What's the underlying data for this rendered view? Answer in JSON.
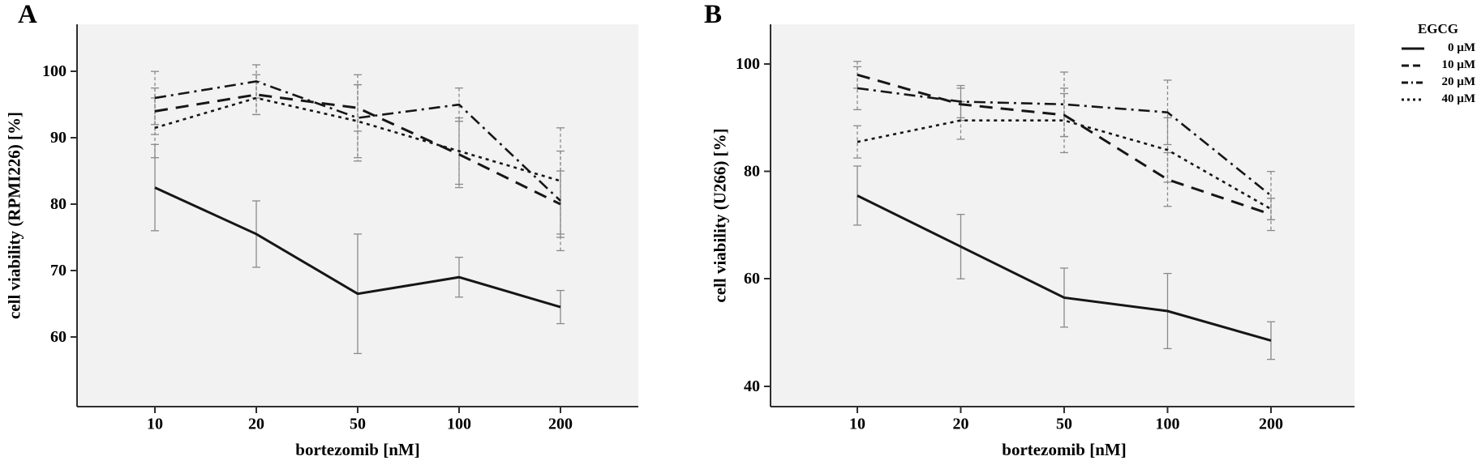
{
  "panels": [
    {
      "letter": "A"
    },
    {
      "letter": "B"
    }
  ],
  "legend": {
    "title": "EGCG",
    "items": [
      {
        "label": "0 µM",
        "style": "solid"
      },
      {
        "label": "10 µM",
        "style": "dashed"
      },
      {
        "label": "20 µM",
        "style": "dashdot"
      },
      {
        "label": "40 µM",
        "style": "dotted"
      }
    ]
  },
  "chart_data": [
    {
      "type": "line",
      "panel": "A",
      "xlabel": "bortezomib [nM]",
      "ylabel": "cell viability (RPMI226) [%]",
      "categories": [
        "10",
        "20",
        "50",
        "100",
        "200"
      ],
      "y_ticks": [
        60,
        70,
        80,
        90,
        100
      ],
      "ylim": [
        49.5,
        107.1
      ],
      "grid": false,
      "legend_position": "outside-right",
      "series": [
        {
          "name": "0 µM",
          "style": "solid",
          "values": [
            82.5,
            75.5,
            66.5,
            69.0,
            64.5
          ],
          "errors": [
            6.5,
            5.0,
            9.0,
            3.0,
            2.5
          ]
        },
        {
          "name": "10 µM",
          "style": "dashed",
          "values": [
            94.0,
            96.5,
            94.5,
            87.5,
            80.0
          ],
          "errors": [
            3.5,
            3.0,
            3.5,
            5.0,
            5.0
          ]
        },
        {
          "name": "20 µM",
          "style": "dashdot",
          "values": [
            96.0,
            98.5,
            93.0,
            95.0,
            80.5
          ],
          "errors": [
            4.0,
            2.5,
            6.5,
            2.5,
            7.5
          ]
        },
        {
          "name": "40 µM",
          "style": "dotted",
          "values": [
            91.5,
            96.0,
            92.5,
            88.0,
            83.5
          ],
          "errors": [
            4.5,
            2.5,
            5.5,
            5.0,
            8.0
          ]
        }
      ]
    },
    {
      "type": "line",
      "panel": "B",
      "xlabel": "bortezomib [nM]",
      "ylabel": "cell viability (U266) [%]",
      "categories": [
        "10",
        "20",
        "50",
        "100",
        "200"
      ],
      "y_ticks": [
        40,
        60,
        80,
        100
      ],
      "ylim": [
        36.2,
        107.4
      ],
      "grid": false,
      "legend_position": "outside-right",
      "series": [
        {
          "name": "0 µM",
          "style": "solid",
          "values": [
            75.5,
            66.0,
            56.5,
            54.0,
            48.5
          ],
          "errors": [
            5.5,
            6.0,
            5.5,
            7.0,
            3.5
          ]
        },
        {
          "name": "10 µM",
          "style": "dashed",
          "values": [
            98.0,
            92.5,
            90.5,
            78.5,
            72.0
          ],
          "errors": [
            2.5,
            3.0,
            4.0,
            5.0,
            3.0
          ]
        },
        {
          "name": "20 µM",
          "style": "dashdot",
          "values": [
            95.5,
            93.0,
            92.5,
            91.0,
            75.5
          ],
          "errors": [
            4.0,
            3.0,
            6.0,
            6.0,
            4.5
          ]
        },
        {
          "name": "40 µM",
          "style": "dotted",
          "values": [
            85.5,
            89.5,
            89.5,
            84.0,
            73.0
          ],
          "errors": [
            3.0,
            3.5,
            6.0,
            6.0,
            2.0
          ]
        }
      ]
    }
  ],
  "colors": {
    "plot_background": "#f2f2f2",
    "line": "#161616",
    "axis": "#2e2e2e",
    "error_bar": "#8a8a8a",
    "text": "#000000"
  }
}
